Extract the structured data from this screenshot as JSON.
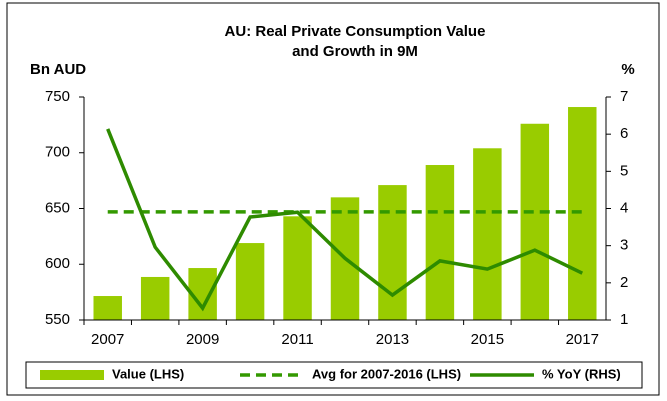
{
  "chart_data": {
    "type": "bar",
    "title": "AU: Real Private Consumption Value",
    "subtitle": "and Growth in 9M",
    "y_label": "Bn AUD",
    "y2_label": "%",
    "categories": [
      "2007",
      null,
      "2009",
      null,
      "2011",
      null,
      "2013",
      null,
      "2015",
      null,
      "2017"
    ],
    "series": [
      {
        "name": "Value (LHS)",
        "type": "bar",
        "color": "#99cc00",
        "values": [
          571.5,
          588.6,
          596.6,
          619,
          643,
          660,
          671,
          689,
          704,
          726,
          741
        ]
      },
      {
        "name": "Avg for 2007-2016 (LHS)",
        "type": "line",
        "dashed": true,
        "color": "#339900",
        "values": [
          647,
          647,
          647,
          647,
          647,
          647,
          647,
          647,
          647,
          647,
          647
        ]
      },
      {
        "name": "% YoY (RHS)",
        "type": "line",
        "axis": "y2",
        "color": "#2e8b00",
        "values": [
          6.14,
          2.96,
          1.32,
          3.77,
          3.9,
          2.66,
          1.67,
          2.59,
          2.37,
          2.88,
          2.26
        ]
      }
    ],
    "ylim": [
      550,
      750
    ],
    "yticks": [
      550,
      600,
      650,
      700,
      750
    ],
    "y2lim": [
      1,
      7
    ],
    "y2ticks": [
      1,
      2,
      3,
      4,
      5,
      6,
      7
    ],
    "legend": "bottom"
  }
}
